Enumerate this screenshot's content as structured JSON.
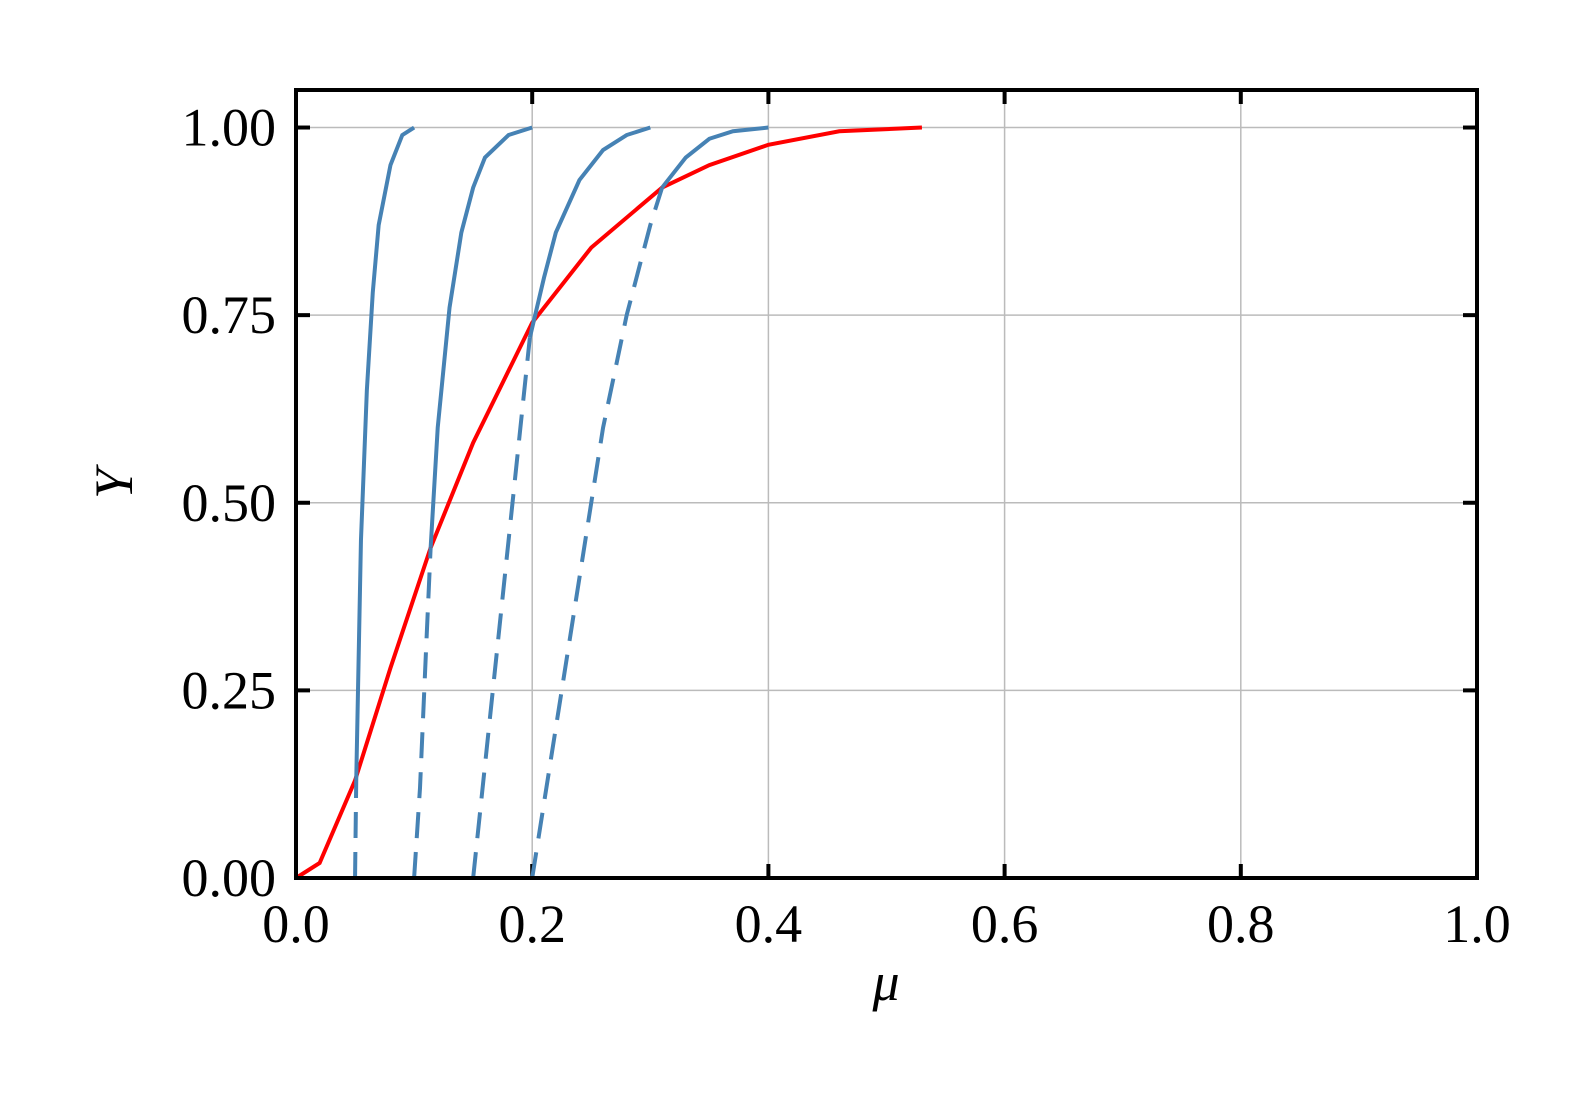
{
  "chart_data": {
    "type": "line",
    "xlabel": "μ",
    "ylabel": "Y",
    "xlim": [
      0,
      1
    ],
    "ylim": [
      0,
      1.05
    ],
    "xticks": [
      {
        "value": 0,
        "label": "0.0"
      },
      0.2,
      0.4,
      0.6,
      0.8,
      {
        "value": 1,
        "label": "1.0"
      }
    ],
    "yticks": [
      {
        "value": 0,
        "label": "0.00"
      },
      {
        "value": 0.25,
        "label": "0.25"
      },
      {
        "value": 0.5,
        "label": "0.50"
      },
      {
        "value": 0.75,
        "label": "0.75"
      },
      {
        "value": 1,
        "label": "1.00"
      }
    ],
    "grid": true,
    "series": [
      {
        "color": "#ff0000",
        "dash": false,
        "x": [
          0,
          0.02,
          0.05,
          0.08,
          0.114,
          0.15,
          0.2,
          0.25,
          0.31,
          0.35,
          0.4,
          0.46,
          0.53
        ],
        "values": [
          0,
          0.02,
          0.13,
          0.28,
          0.44,
          0.58,
          0.74,
          0.84,
          0.92,
          0.95,
          0.977,
          0.995,
          1.0
        ]
      },
      {
        "color": "#4682b4",
        "dash": true,
        "x": [
          0.05,
          0.051
        ],
        "values": [
          0,
          0.13
        ]
      },
      {
        "color": "#4682b4",
        "dash": false,
        "x": [
          0.051,
          0.055,
          0.06,
          0.065,
          0.07,
          0.08,
          0.09,
          0.1
        ],
        "values": [
          0.13,
          0.45,
          0.65,
          0.78,
          0.87,
          0.95,
          0.99,
          1.0
        ]
      },
      {
        "color": "#4682b4",
        "dash": true,
        "x": [
          0.1,
          0.105,
          0.11,
          0.114
        ],
        "values": [
          0,
          0.12,
          0.3,
          0.44
        ]
      },
      {
        "color": "#4682b4",
        "dash": false,
        "x": [
          0.114,
          0.12,
          0.13,
          0.14,
          0.15,
          0.16,
          0.18,
          0.2
        ],
        "values": [
          0.44,
          0.6,
          0.76,
          0.86,
          0.92,
          0.96,
          0.99,
          1.0
        ]
      },
      {
        "color": "#4682b4",
        "dash": true,
        "x": [
          0.15,
          0.16,
          0.17,
          0.18,
          0.19,
          0.198
        ],
        "values": [
          0,
          0.15,
          0.3,
          0.45,
          0.6,
          0.72
        ]
      },
      {
        "color": "#4682b4",
        "dash": false,
        "x": [
          0.198,
          0.21,
          0.22,
          0.24,
          0.26,
          0.28,
          0.3
        ],
        "values": [
          0.72,
          0.8,
          0.86,
          0.93,
          0.97,
          0.99,
          1.0
        ]
      },
      {
        "color": "#4682b4",
        "dash": true,
        "x": [
          0.2,
          0.22,
          0.24,
          0.26,
          0.28,
          0.3,
          0.31
        ],
        "values": [
          0,
          0.2,
          0.4,
          0.6,
          0.75,
          0.87,
          0.92
        ]
      },
      {
        "color": "#4682b4",
        "dash": false,
        "x": [
          0.31,
          0.33,
          0.35,
          0.37,
          0.4
        ],
        "values": [
          0.92,
          0.96,
          0.985,
          0.995,
          1.0
        ]
      }
    ]
  }
}
